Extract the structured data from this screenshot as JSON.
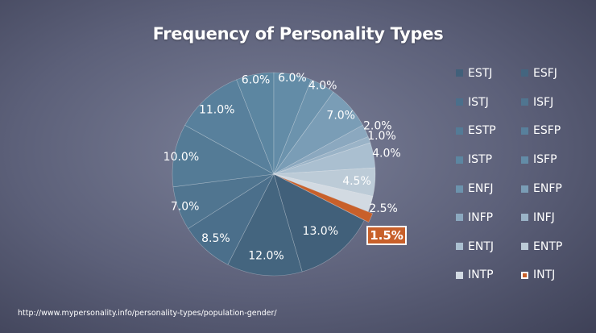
{
  "chart_data": {
    "type": "pie",
    "title": "Frequency of Personality Types",
    "slices": [
      {
        "label": "ESTJ",
        "value": 13.0,
        "display": "13.0%",
        "color": "#41607a"
      },
      {
        "label": "ESFJ",
        "value": 12.0,
        "display": "12.0%",
        "color": "#44657f"
      },
      {
        "label": "ISTJ",
        "value": 8.5,
        "display": "8.5%",
        "color": "#4b6f8b"
      },
      {
        "label": "ISFJ",
        "value": 7.0,
        "display": "7.0%",
        "color": "#507590"
      },
      {
        "label": "ESTP",
        "value": 10.0,
        "display": "10.0%",
        "color": "#547b96"
      },
      {
        "label": "ESFP",
        "value": 11.0,
        "display": "11.0%",
        "color": "#58809c"
      },
      {
        "label": "ISTP",
        "value": 6.0,
        "display": "6.0%",
        "color": "#5c86a1"
      },
      {
        "label": "ISFP",
        "value": 6.0,
        "display": "6.0%",
        "color": "#638ca7"
      },
      {
        "label": "ENFJ",
        "value": 4.0,
        "display": "4.0%",
        "color": "#6c93ad"
      },
      {
        "label": "ENFP",
        "value": 7.0,
        "display": "7.0%",
        "color": "#7a9db6"
      },
      {
        "label": "INFP",
        "value": 2.0,
        "display": "2.0%",
        "color": "#8ba8bf"
      },
      {
        "label": "INFJ",
        "value": 1.0,
        "display": "1.0%",
        "color": "#9ab3c7"
      },
      {
        "label": "ENTJ",
        "value": 4.0,
        "display": "4.0%",
        "color": "#aabfd0"
      },
      {
        "label": "ENTP",
        "value": 4.5,
        "display": "4.5%",
        "color": "#bccbd7"
      },
      {
        "label": "INTP",
        "value": 2.5,
        "display": "2.5%",
        "color": "#d2dae2"
      },
      {
        "label": "INTJ",
        "value": 1.5,
        "display": "1.5%",
        "color": "#c8602a",
        "highlighted": true
      }
    ],
    "legend_placement": "right"
  },
  "source_note": "http://www.mypersonality.info/personality-types/population-gender/"
}
